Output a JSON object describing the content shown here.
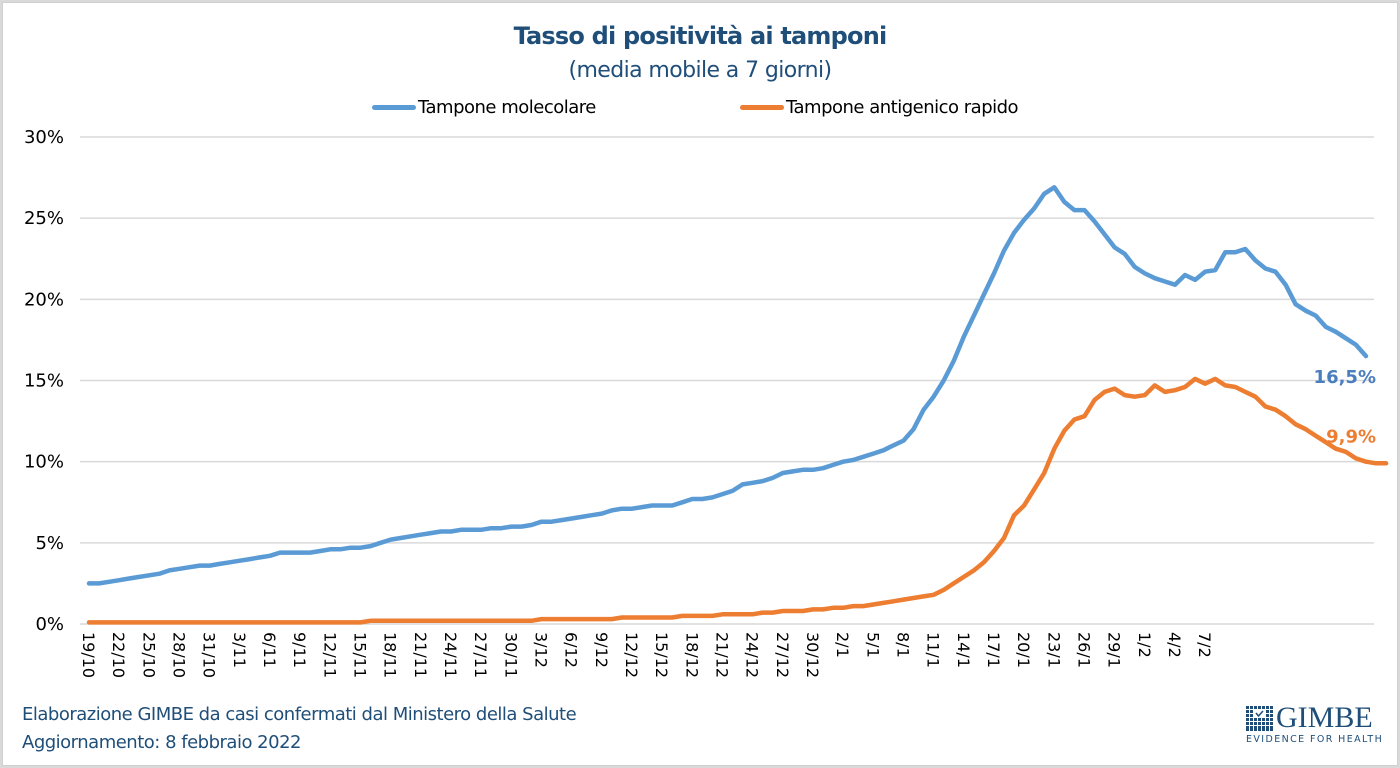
{
  "header": {
    "title": "Tasso di positività ai tamponi",
    "subtitle": "(media mobile a 7 giorni)"
  },
  "legend": {
    "position": "top-center",
    "items": [
      {
        "label": "Tampone molecolare",
        "color": "#5b9bd5"
      },
      {
        "label": "Tampone antigenico rapido",
        "color": "#ed7d31"
      }
    ]
  },
  "footer": {
    "source": "Elaborazione GIMBE da casi confermati dal Ministero della Salute",
    "updated": "Aggiornamento: 8 febbraio 2022"
  },
  "logo": {
    "name": "GIMBE",
    "tagline": "EVIDENCE FOR HEALTH",
    "color": "#1f4e79"
  },
  "chart_data": {
    "type": "line",
    "title": "Tasso di positività ai tamponi",
    "subtitle": "(media mobile a 7 giorni)",
    "xlabel": "",
    "ylabel": "",
    "ylim": [
      0,
      30
    ],
    "yticks": [
      "0%",
      "5%",
      "10%",
      "15%",
      "20%",
      "25%",
      "30%"
    ],
    "ytick_values": [
      0,
      5,
      10,
      15,
      20,
      25,
      30
    ],
    "grid": "horizontal",
    "legend_position": "top",
    "x_tick_labels": [
      "19/10",
      "22/10",
      "25/10",
      "28/10",
      "31/10",
      "3/11",
      "6/11",
      "9/11",
      "12/11",
      "15/11",
      "18/11",
      "21/11",
      "24/11",
      "27/11",
      "30/11",
      "3/12",
      "6/12",
      "9/12",
      "12/12",
      "15/12",
      "18/12",
      "21/12",
      "24/12",
      "27/12",
      "30/12",
      "2/1",
      "5/1",
      "8/1",
      "11/1",
      "14/1",
      "17/1",
      "20/1",
      "23/1",
      "26/1",
      "29/1",
      "1/2",
      "4/2",
      "7/2"
    ],
    "x_tick_every_days": 3,
    "x_start": "19/10/2021",
    "x_end": "7/2/2022",
    "series": [
      {
        "name": "Tampone molecolare",
        "color": "#5b9bd5",
        "end_label": "16,5%",
        "values": [
          2.5,
          2.5,
          2.6,
          2.7,
          2.8,
          2.9,
          3.0,
          3.1,
          3.3,
          3.4,
          3.5,
          3.6,
          3.6,
          3.7,
          3.8,
          3.9,
          4.0,
          4.1,
          4.2,
          4.4,
          4.4,
          4.4,
          4.4,
          4.5,
          4.6,
          4.6,
          4.7,
          4.7,
          4.8,
          5.0,
          5.2,
          5.3,
          5.4,
          5.5,
          5.6,
          5.7,
          5.7,
          5.8,
          5.8,
          5.8,
          5.9,
          5.9,
          6.0,
          6.0,
          6.1,
          6.3,
          6.3,
          6.4,
          6.5,
          6.6,
          6.7,
          6.8,
          7.0,
          7.1,
          7.1,
          7.2,
          7.3,
          7.3,
          7.3,
          7.5,
          7.7,
          7.7,
          7.8,
          8.0,
          8.2,
          8.6,
          8.7,
          8.8,
          9.0,
          9.3,
          9.4,
          9.5,
          9.5,
          9.6,
          9.8,
          10.0,
          10.1,
          10.3,
          10.5,
          10.7,
          11.0,
          11.3,
          12.0,
          13.2,
          14.0,
          15.0,
          16.2,
          17.7,
          19.0,
          20.3,
          21.6,
          23.0,
          24.1,
          24.9,
          25.6,
          26.5,
          26.9,
          26.0,
          25.5,
          25.5,
          24.8,
          24.0,
          23.2,
          22.8,
          22.0,
          21.6,
          21.3,
          21.1,
          20.9,
          21.5,
          21.2,
          21.7,
          21.8,
          22.9,
          22.9,
          23.1,
          22.4,
          21.9,
          21.7,
          20.9,
          19.7,
          19.3,
          19.0,
          18.3,
          18.0,
          17.6,
          17.2,
          16.5
        ]
      },
      {
        "name": "Tampone antigenico rapido",
        "color": "#ed7d31",
        "end_label": "9,9%",
        "values": [
          0.1,
          0.1,
          0.1,
          0.1,
          0.1,
          0.1,
          0.1,
          0.1,
          0.1,
          0.1,
          0.1,
          0.1,
          0.1,
          0.1,
          0.1,
          0.1,
          0.1,
          0.1,
          0.1,
          0.1,
          0.1,
          0.1,
          0.1,
          0.1,
          0.1,
          0.1,
          0.1,
          0.1,
          0.2,
          0.2,
          0.2,
          0.2,
          0.2,
          0.2,
          0.2,
          0.2,
          0.2,
          0.2,
          0.2,
          0.2,
          0.2,
          0.2,
          0.2,
          0.2,
          0.2,
          0.3,
          0.3,
          0.3,
          0.3,
          0.3,
          0.3,
          0.3,
          0.3,
          0.4,
          0.4,
          0.4,
          0.4,
          0.4,
          0.4,
          0.5,
          0.5,
          0.5,
          0.5,
          0.6,
          0.6,
          0.6,
          0.6,
          0.7,
          0.7,
          0.8,
          0.8,
          0.8,
          0.9,
          0.9,
          1.0,
          1.0,
          1.1,
          1.1,
          1.2,
          1.3,
          1.4,
          1.5,
          1.6,
          1.7,
          1.8,
          2.1,
          2.5,
          2.9,
          3.3,
          3.8,
          4.5,
          5.3,
          6.7,
          7.3,
          8.3,
          9.3,
          10.8,
          11.9,
          12.6,
          12.8,
          13.8,
          14.3,
          14.5,
          14.1,
          14.0,
          14.1,
          14.7,
          14.3,
          14.4,
          14.6,
          15.1,
          14.8,
          15.1,
          14.7,
          14.6,
          14.3,
          14.0,
          13.4,
          13.2,
          12.8,
          12.3,
          12.0,
          11.6,
          11.2,
          10.8,
          10.6,
          10.2,
          10.0,
          9.9,
          9.9
        ]
      }
    ]
  }
}
